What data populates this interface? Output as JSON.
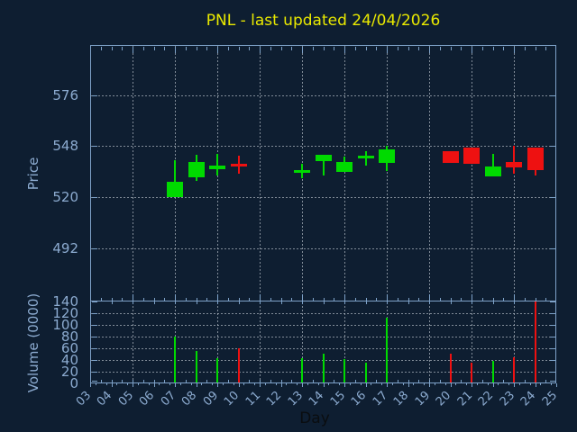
{
  "title": {
    "text": "PNL - last updated 24/04/2026"
  },
  "axes": {
    "price_label": "Price",
    "volume_label": "Volume (0000)",
    "day_label": "Day",
    "price_ticks": [
      492,
      520,
      548,
      576
    ],
    "volume_ticks": [
      0,
      20,
      40,
      60,
      80,
      100,
      120,
      140
    ],
    "day_tick_labels": [
      "03",
      "04",
      "05",
      "06",
      "07",
      "08",
      "09",
      "10",
      "11",
      "12",
      "13",
      "14",
      "15",
      "16",
      "17",
      "18",
      "19",
      "20",
      "21",
      "22",
      "23",
      "24",
      "25"
    ],
    "x_gridline_days": [
      5,
      7,
      9,
      11,
      13,
      15,
      17,
      19,
      21,
      23
    ],
    "x_range": [
      3,
      25
    ],
    "price_range": [
      462.7,
      603.5
    ],
    "volume_range": [
      0,
      140
    ]
  },
  "colors": {
    "background": "#0e1e31",
    "axis": "#7ea2c8",
    "tick_text": "#8cabd0",
    "grid": "#aeb6c0",
    "up": "#00da00",
    "down": "#ee1111",
    "title": "#e9e900",
    "day_label": "#0a0d10"
  },
  "chart_data": {
    "type": "candlestick_with_volume",
    "title": "PNL - last updated 24/04/2026",
    "xlabel": "Day",
    "ylabel_price": "Price",
    "ylabel_volume": "Volume (0000)",
    "volume_unit": "0000",
    "candles": [
      {
        "day": 7,
        "open": 520.0,
        "high": 540.5,
        "low": 520.0,
        "close": 528.5,
        "volume": 80
      },
      {
        "day": 8,
        "open": 531.0,
        "high": 543.0,
        "low": 529.0,
        "close": 539.5,
        "volume": 55
      },
      {
        "day": 9,
        "open": 535.5,
        "high": 543.5,
        "low": 532.0,
        "close": 537.5,
        "volume": 43
      },
      {
        "day": 10,
        "open": 538.5,
        "high": 542.5,
        "low": 533.0,
        "close": 537.0,
        "volume": 60
      },
      {
        "day": 13,
        "open": 533.5,
        "high": 538.5,
        "low": 530.5,
        "close": 535.0,
        "volume": 43
      },
      {
        "day": 14,
        "open": 539.5,
        "high": 543.0,
        "low": 532.0,
        "close": 543.0,
        "volume": 51
      },
      {
        "day": 15,
        "open": 534.0,
        "high": 542.0,
        "low": 534.0,
        "close": 539.5,
        "volume": 42
      },
      {
        "day": 16,
        "open": 541.0,
        "high": 545.0,
        "low": 537.5,
        "close": 542.5,
        "volume": 36
      },
      {
        "day": 17,
        "open": 538.5,
        "high": 548.0,
        "low": 534.5,
        "close": 546.0,
        "volume": 113
      },
      {
        "day": 20,
        "open": 545.0,
        "high": 545.0,
        "low": 538.5,
        "close": 538.5,
        "volume": 51
      },
      {
        "day": 21,
        "open": 547.0,
        "high": 547.0,
        "low": 538.0,
        "close": 538.0,
        "volume": 36
      },
      {
        "day": 22,
        "open": 531.5,
        "high": 543.5,
        "low": 531.5,
        "close": 537.0,
        "volume": 39
      },
      {
        "day": 23,
        "open": 539.5,
        "high": 548.0,
        "low": 533.0,
        "close": 536.5,
        "volume": 44
      },
      {
        "day": 24,
        "open": 547.0,
        "high": 547.0,
        "low": 532.0,
        "close": 534.5,
        "volume": 140
      }
    ]
  }
}
